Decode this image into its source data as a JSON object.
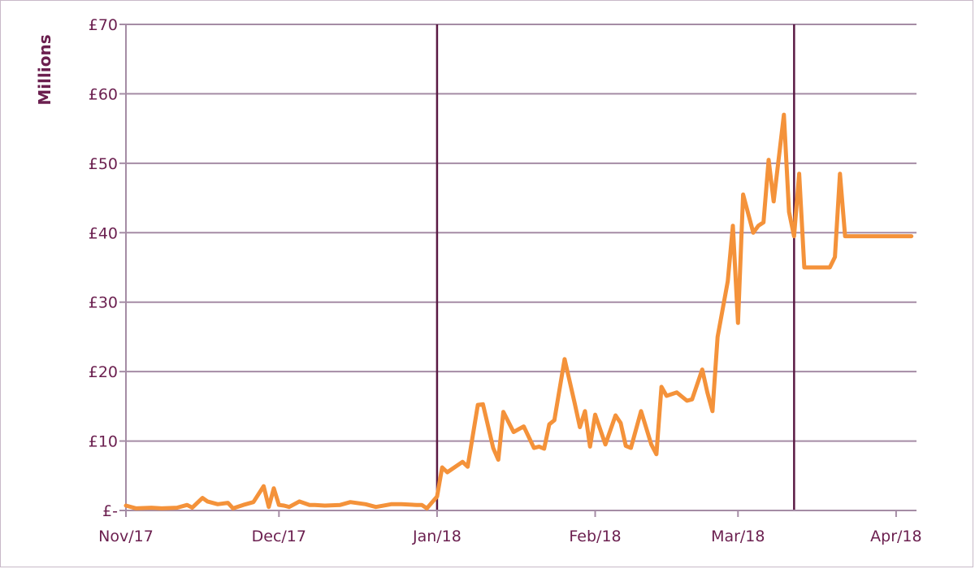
{
  "chart_data": {
    "type": "line",
    "title": "",
    "xlabel": "",
    "ylabel": "Millions",
    "ylim": [
      0,
      70
    ],
    "y_ticks": [
      {
        "value": 0,
        "label": "£-"
      },
      {
        "value": 10,
        "label": "£10"
      },
      {
        "value": 20,
        "label": "£20"
      },
      {
        "value": 30,
        "label": "£30"
      },
      {
        "value": 40,
        "label": "£40"
      },
      {
        "value": 50,
        "label": "£50"
      },
      {
        "value": 60,
        "label": "£60"
      },
      {
        "value": 70,
        "label": "£70"
      }
    ],
    "xlim": [
      "2017-11-01",
      "2018-04-05"
    ],
    "x_ticks": [
      {
        "date": "2017-11-01",
        "label": "Nov/17"
      },
      {
        "date": "2017-12-01",
        "label": "Dec/17"
      },
      {
        "date": "2018-01-01",
        "label": "Jan/18"
      },
      {
        "date": "2018-02-01",
        "label": "Feb/18"
      },
      {
        "date": "2018-03-01",
        "label": "Mar/18"
      },
      {
        "date": "2018-04-01",
        "label": "Apr/18"
      }
    ],
    "grid": {
      "horizontal": true,
      "vertical": false
    },
    "reference_lines": [
      {
        "date": "2018-01-01",
        "color": "#5a1a44"
      },
      {
        "date": "2018-03-12",
        "color": "#5a1a44"
      }
    ],
    "colors": {
      "line": "#f4923a",
      "axis_text": "#6b1f4f",
      "grid": "#a58ca5",
      "reference": "#5a1a44"
    },
    "series": [
      {
        "x": [
          "2017-11-01",
          "2017-11-03",
          "2017-11-06",
          "2017-11-08",
          "2017-11-11",
          "2017-11-13",
          "2017-11-14",
          "2017-11-16",
          "2017-11-17",
          "2017-11-19",
          "2017-11-21",
          "2017-11-22",
          "2017-11-24",
          "2017-11-26",
          "2017-11-28",
          "2017-11-29",
          "2017-11-30",
          "2017-12-01",
          "2017-12-02",
          "2017-12-03",
          "2017-12-05",
          "2017-12-07",
          "2017-12-08",
          "2017-12-10",
          "2017-12-13",
          "2017-12-15",
          "2017-12-18",
          "2017-12-20",
          "2017-12-23",
          "2017-12-25",
          "2017-12-28",
          "2017-12-29",
          "2017-12-30",
          "2018-01-01",
          "2018-01-02",
          "2018-01-03",
          "2018-01-06",
          "2018-01-07",
          "2018-01-09",
          "2018-01-10",
          "2018-01-12",
          "2018-01-13",
          "2018-01-14",
          "2018-01-16",
          "2018-01-18",
          "2018-01-20",
          "2018-01-21",
          "2018-01-22",
          "2018-01-23",
          "2018-01-24",
          "2018-01-26",
          "2018-01-28",
          "2018-01-29",
          "2018-01-30",
          "2018-01-31",
          "2018-02-01",
          "2018-02-03",
          "2018-02-05",
          "2018-02-06",
          "2018-02-07",
          "2018-02-08",
          "2018-02-10",
          "2018-02-12",
          "2018-02-13",
          "2018-02-14",
          "2018-02-15",
          "2018-02-17",
          "2018-02-19",
          "2018-02-20",
          "2018-02-22",
          "2018-02-23",
          "2018-02-24",
          "2018-02-25",
          "2018-02-27",
          "2018-02-28",
          "2018-03-01",
          "2018-03-02",
          "2018-03-04",
          "2018-03-05",
          "2018-03-06",
          "2018-03-07",
          "2018-03-08",
          "2018-03-10",
          "2018-03-11",
          "2018-03-12",
          "2018-03-13",
          "2018-03-14",
          "2018-03-15",
          "2018-03-16",
          "2018-03-18",
          "2018-03-19",
          "2018-03-20",
          "2018-03-21",
          "2018-03-22",
          "2018-03-23",
          "2018-03-24",
          "2018-03-26",
          "2018-03-27",
          "2018-03-28",
          "2018-03-29",
          "2018-03-30",
          "2018-03-31",
          "2018-04-01",
          "2018-04-02",
          "2018-04-03",
          "2018-04-04"
        ],
        "values": [
          0.7,
          0.3,
          0.4,
          0.3,
          0.4,
          0.8,
          0.4,
          1.8,
          1.3,
          0.9,
          1.1,
          0.3,
          0.8,
          1.2,
          3.5,
          0.5,
          3.2,
          0.8,
          0.7,
          0.5,
          1.3,
          0.8,
          0.8,
          0.7,
          0.8,
          1.2,
          0.9,
          0.5,
          0.9,
          0.9,
          0.8,
          0.8,
          0.3,
          2.0,
          6.2,
          5.5,
          7.0,
          6.3,
          15.2,
          15.3,
          9.0,
          7.3,
          14.2,
          11.3,
          12.1,
          9.0,
          9.2,
          8.9,
          12.4,
          13.0,
          21.8,
          15.4,
          12.0,
          14.3,
          9.2,
          13.8,
          9.5,
          13.7,
          12.6,
          9.3,
          9.0,
          14.3,
          9.5,
          8.1,
          17.8,
          16.5,
          17.0,
          15.8,
          16.0,
          20.3,
          17.0,
          14.3,
          25.0,
          33.0,
          41.0,
          27.0,
          45.5,
          40.0,
          41.0,
          41.5,
          50.5,
          44.5,
          57.0,
          43.0,
          39.5,
          48.5,
          35.0,
          35.0,
          35.0,
          35.0,
          35.0,
          36.5,
          48.5,
          39.5,
          39.5,
          39.5,
          39.5,
          39.5,
          39.5,
          39.5,
          39.5,
          39.5,
          39.5,
          39.5,
          39.5,
          39.5
        ]
      }
    ]
  }
}
